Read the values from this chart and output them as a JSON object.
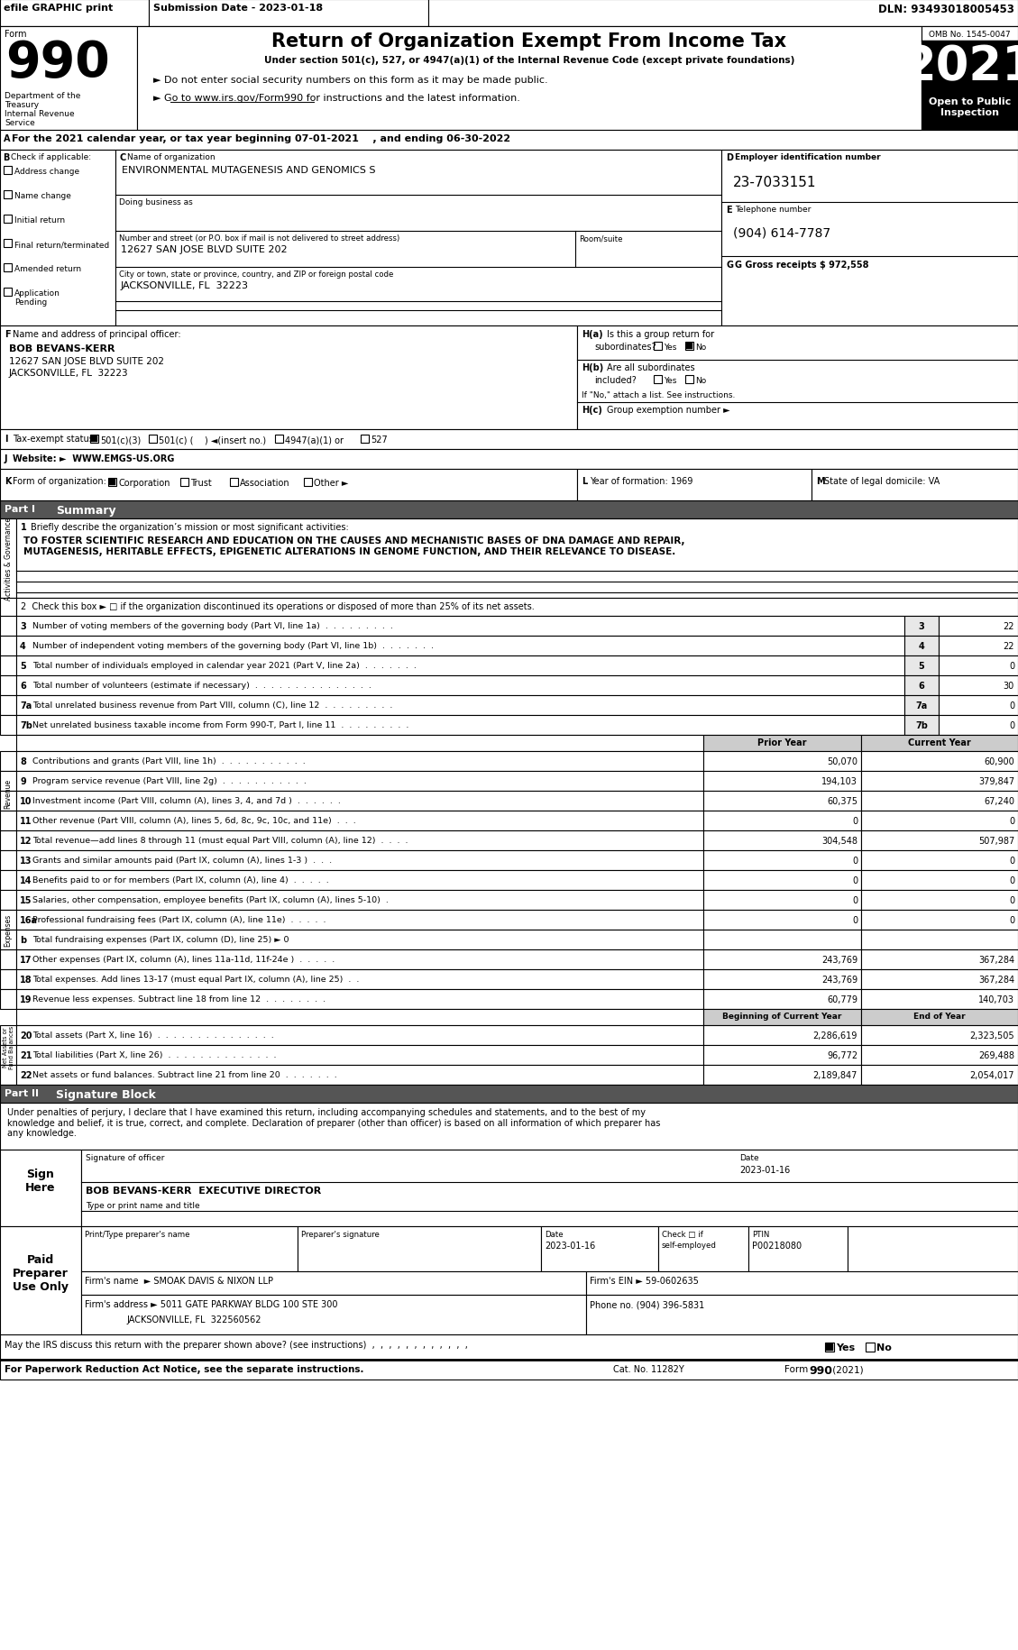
{
  "header_top": {
    "efile": "efile GRAPHIC print",
    "submission": "Submission Date - 2023-01-18",
    "dln": "DLN: 93493018005453"
  },
  "form_header": {
    "form_number": "990",
    "title": "Return of Organization Exempt From Income Tax",
    "subtitle1": "Under section 501(c), 527, or 4947(a)(1) of the Internal Revenue Code (except private foundations)",
    "subtitle2": "► Do not enter social security numbers on this form as it may be made public.",
    "subtitle3": "► Go to www.irs.gov/Form990 for instructions and the latest information.",
    "omb": "OMB No. 1545-0047",
    "year": "2021",
    "dept1": "Department of the\nTreasury",
    "dept2": "Internal Revenue\nService"
  },
  "org_name": "ENVIRONMENTAL MUTAGENESIS AND GENOMICS S",
  "ein": "23-7033151",
  "phone": "(904) 614-7787",
  "gross_receipts": "G Gross receipts $ 972,558",
  "addr": "12627 SAN JOSE BLVD SUITE 202",
  "city": "JACKSONVILLE, FL  32223",
  "officer_name": "BOB BEVANS-KERR",
  "officer_addr1": "12627 SAN JOSE BLVD SUITE 202",
  "officer_addr2": "JACKSONVILLE, FL  32223",
  "website": "WWW.EMGS-US.ORG",
  "year_formation": "1969",
  "state_domicile": "VA",
  "tax_year_start": "07-01-2021",
  "tax_year_end": "06-30-2022",
  "mission": "TO FOSTER SCIENTIFIC RESEARCH AND EDUCATION ON THE CAUSES AND MECHANISTIC BASES OF DNA DAMAGE AND REPAIR,\nMUTAGENESIS, HERITABLE EFFECTS, EPIGENETIC ALTERATIONS IN GENOME FUNCTION, AND THEIR RELEVANCE TO DISEASE.",
  "lines_37": [
    {
      "num": "3",
      "text": "Number of voting members of the governing body (Part VI, line 1a)  .  .  .  .  .  .  .  .  .",
      "value": "22"
    },
    {
      "num": "4",
      "text": "Number of independent voting members of the governing body (Part VI, line 1b)  .  .  .  .  .  .  .",
      "value": "22"
    },
    {
      "num": "5",
      "text": "Total number of individuals employed in calendar year 2021 (Part V, line 2a)  .  .  .  .  .  .  .",
      "value": "0"
    },
    {
      "num": "6",
      "text": "Total number of volunteers (estimate if necessary)  .  .  .  .  .  .  .  .  .  .  .  .  .  .  .",
      "value": "30"
    },
    {
      "num": "7a",
      "text": "Total unrelated business revenue from Part VIII, column (C), line 12  .  .  .  .  .  .  .  .  .",
      "value": "0"
    },
    {
      "num": "7b",
      "text": "Net unrelated business taxable income from Form 990-T, Part I, line 11  .  .  .  .  .  .  .  .  .",
      "value": "0"
    }
  ],
  "revenue_lines": [
    {
      "num": "8",
      "text": "Contributions and grants (Part VIII, line 1h)  .  .  .  .  .  .  .  .  .  .  .",
      "prior": "50,070",
      "current": "60,900"
    },
    {
      "num": "9",
      "text": "Program service revenue (Part VIII, line 2g)  .  .  .  .  .  .  .  .  .  .  .",
      "prior": "194,103",
      "current": "379,847"
    },
    {
      "num": "10",
      "text": "Investment income (Part VIII, column (A), lines 3, 4, and 7d )  .  .  .  .  .  .",
      "prior": "60,375",
      "current": "67,240"
    },
    {
      "num": "11",
      "text": "Other revenue (Part VIII, column (A), lines 5, 6d, 8c, 9c, 10c, and 11e)  .  .  .",
      "prior": "0",
      "current": "0"
    },
    {
      "num": "12",
      "text": "Total revenue—add lines 8 through 11 (must equal Part VIII, column (A), line 12)  .  .  .  .",
      "prior": "304,548",
      "current": "507,987"
    }
  ],
  "expense_lines": [
    {
      "num": "13",
      "text": "Grants and similar amounts paid (Part IX, column (A), lines 1-3 )  .  .  .",
      "prior": "0",
      "current": "0"
    },
    {
      "num": "14",
      "text": "Benefits paid to or for members (Part IX, column (A), line 4)  .  .  .  .  .",
      "prior": "0",
      "current": "0"
    },
    {
      "num": "15",
      "text": "Salaries, other compensation, employee benefits (Part IX, column (A), lines 5-10)  .",
      "prior": "0",
      "current": "0"
    },
    {
      "num": "16a",
      "text": "Professional fundraising fees (Part IX, column (A), line 11e)  .  .  .  .  .",
      "prior": "0",
      "current": "0"
    },
    {
      "num": "b",
      "text": "Total fundraising expenses (Part IX, column (D), line 25) ► 0",
      "prior": "",
      "current": ""
    },
    {
      "num": "17",
      "text": "Other expenses (Part IX, column (A), lines 11a-11d, 11f-24e )  .  .  .  .  .",
      "prior": "243,769",
      "current": "367,284"
    },
    {
      "num": "18",
      "text": "Total expenses. Add lines 13-17 (must equal Part IX, column (A), line 25)  .  .",
      "prior": "243,769",
      "current": "367,284"
    },
    {
      "num": "19",
      "text": "Revenue less expenses. Subtract line 18 from line 12  .  .  .  .  .  .  .  .",
      "prior": "60,779",
      "current": "140,703"
    }
  ],
  "netasset_lines": [
    {
      "num": "20",
      "text": "Total assets (Part X, line 16)  .  .  .  .  .  .  .  .  .  .  .  .  .  .  .",
      "prior": "2,286,619",
      "current": "2,323,505"
    },
    {
      "num": "21",
      "text": "Total liabilities (Part X, line 26)  .  .  .  .  .  .  .  .  .  .  .  .  .  .",
      "prior": "96,772",
      "current": "269,488"
    },
    {
      "num": "22",
      "text": "Net assets or fund balances. Subtract line 21 from line 20  .  .  .  .  .  .  .",
      "prior": "2,189,847",
      "current": "2,054,017"
    }
  ],
  "part2_text": "Under penalties of perjury, I declare that I have examined this return, including accompanying schedules and statements, and to the best of my\nknowledge and belief, it is true, correct, and complete. Declaration of preparer (other than officer) is based on all information of which preparer has\nany knowledge.",
  "sign_date": "2023-01-16",
  "sign_name": "BOB BEVANS-KERR  EXECUTIVE DIRECTOR",
  "prep_date": "2023-01-16",
  "prep_ptin": "P00218080",
  "firm_name": "Firm's name  ► SMOAK DAVIS & NIXON LLP",
  "firm_ein": "Firm's EIN ► 59-0602635",
  "firm_addr": "Firm's address ► 5011 GATE PARKWAY BLDG 100 STE 300",
  "firm_city": "JACKSONVILLE, FL  322560562",
  "firm_phone": "Phone no. (904) 396-5831",
  "footer_discuss": "May the IRS discuss this return with the preparer shown above? (see instructions)  ,  ,  ,  ,  ,  ,  ,  ,  ,  ,  ,  ,",
  "footer_cat": "Cat. No. 11282Y",
  "footer_form": "Form 990 (2021)"
}
